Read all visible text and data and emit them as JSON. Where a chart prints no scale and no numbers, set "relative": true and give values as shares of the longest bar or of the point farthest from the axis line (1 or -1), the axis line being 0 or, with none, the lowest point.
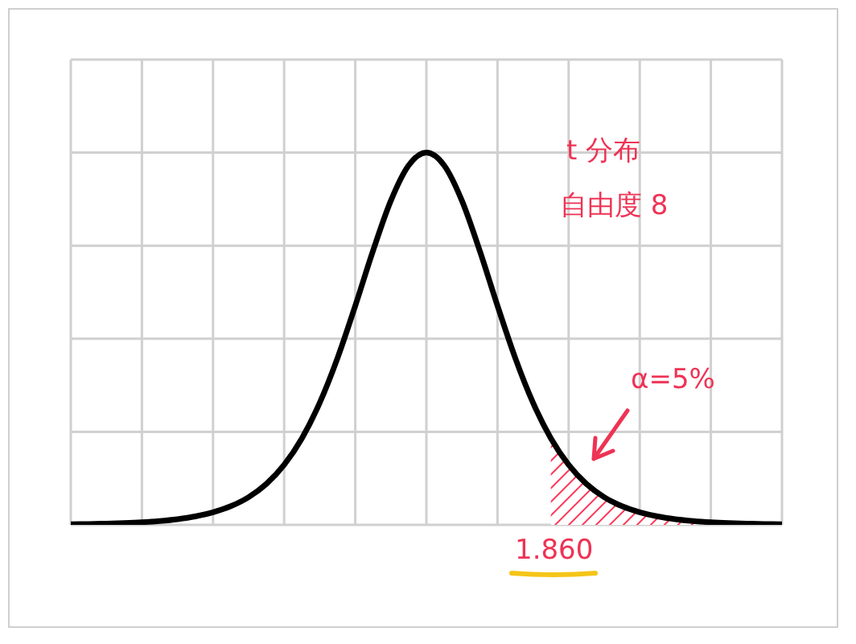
{
  "chart_data": {
    "type": "line",
    "relative": true,
    "grid": true,
    "categories": [
      null,
      null,
      null,
      null,
      null,
      null,
      null,
      null,
      null,
      null,
      null,
      null,
      null,
      null,
      null,
      null,
      null,
      null,
      null,
      null,
      null,
      null,
      null,
      null,
      null,
      null,
      null,
      null,
      null,
      null,
      null,
      null,
      null,
      null,
      null,
      null,
      null,
      null,
      null,
      null,
      null
    ],
    "series": [
      {
        "color": "#000000",
        "values": [
          0.0017,
          0.0024,
          0.0034,
          0.0049,
          0.0071,
          0.0104,
          0.0153,
          0.0226,
          0.0337,
          0.0501,
          0.0744,
          0.1101,
          0.1613,
          0.2326,
          0.3278,
          0.448,
          0.5886,
          0.7366,
          0.8707,
          0.9656,
          1,
          0.9656,
          0.8707,
          0.7366,
          0.5886,
          0.448,
          0.3278,
          0.2326,
          0.1613,
          0.1101,
          0.0744,
          0.0501,
          0.0337,
          0.0226,
          0.0153,
          0.0104,
          0.0071,
          0.0049,
          0.0034,
          0.0024,
          0.0017
        ]
      },
      {
        "type": "area",
        "color": "#ff3355",
        "values": [
          null,
          null,
          null,
          null,
          null,
          null,
          null,
          null,
          null,
          null,
          null,
          null,
          null,
          null,
          null,
          null,
          null,
          null,
          null,
          null,
          null,
          null,
          null,
          null,
          null,
          null,
          null,
          0.2326,
          0.1613,
          0.1101,
          0.0744,
          0.0501,
          0.0337,
          0.0226,
          0.0153,
          0.0104,
          0.0071,
          0.0049,
          0.0034,
          0.0024,
          0.0017
        ]
      }
    ],
    "annotations": [
      "t 分布",
      "自由度 8",
      "α=5%",
      "1.860"
    ]
  }
}
